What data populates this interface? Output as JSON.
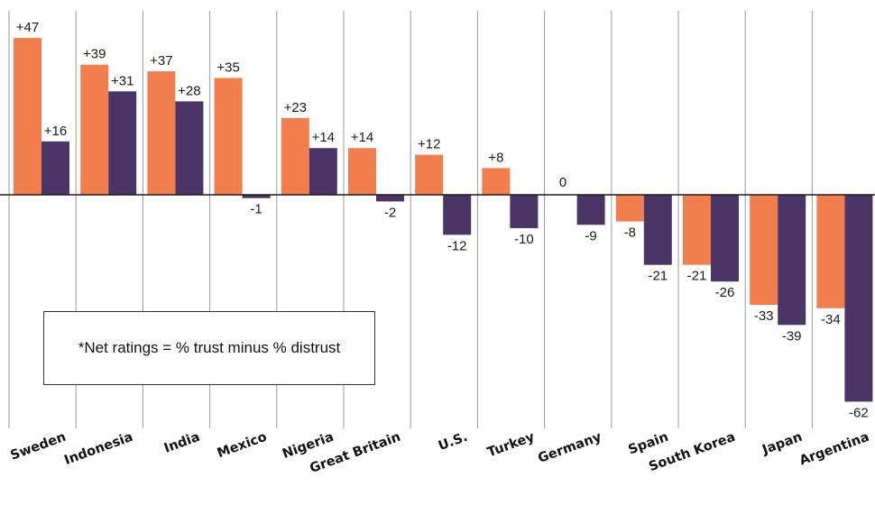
{
  "chart_data": {
    "type": "bar",
    "categories": [
      "Sweden",
      "Indonesia",
      "India",
      "Mexico",
      "Nigeria",
      "Great Britain",
      "U.S.",
      "Turkey",
      "Germany",
      "Spain",
      "South Korea",
      "Japan",
      "Argentina"
    ],
    "series": [
      {
        "color": "#F37E4D",
        "values": [
          47,
          39,
          37,
          35,
          23,
          14,
          12,
          8,
          0,
          -8,
          -21,
          -33,
          -34
        ],
        "labels": [
          "+47",
          "+39",
          "+37",
          "+35",
          "+23",
          "+14",
          "+12",
          "+8",
          "0",
          "-8",
          "-21",
          "-33",
          "-34"
        ]
      },
      {
        "color": "#4A3566",
        "values": [
          16,
          31,
          28,
          -1,
          14,
          -2,
          -12,
          -10,
          -9,
          -21,
          -26,
          -39,
          -62
        ],
        "labels": [
          "+16",
          "+31",
          "+28",
          "-1",
          "+14",
          "-2",
          "-12",
          "-10",
          "-9",
          "-21",
          "-26",
          "-39",
          "-62"
        ]
      }
    ],
    "ylim": [
      -68,
      55
    ],
    "grid": true,
    "title": "",
    "xlabel": "",
    "ylabel": "",
    "annotation": "*Net ratings = % trust minus % distrust"
  }
}
